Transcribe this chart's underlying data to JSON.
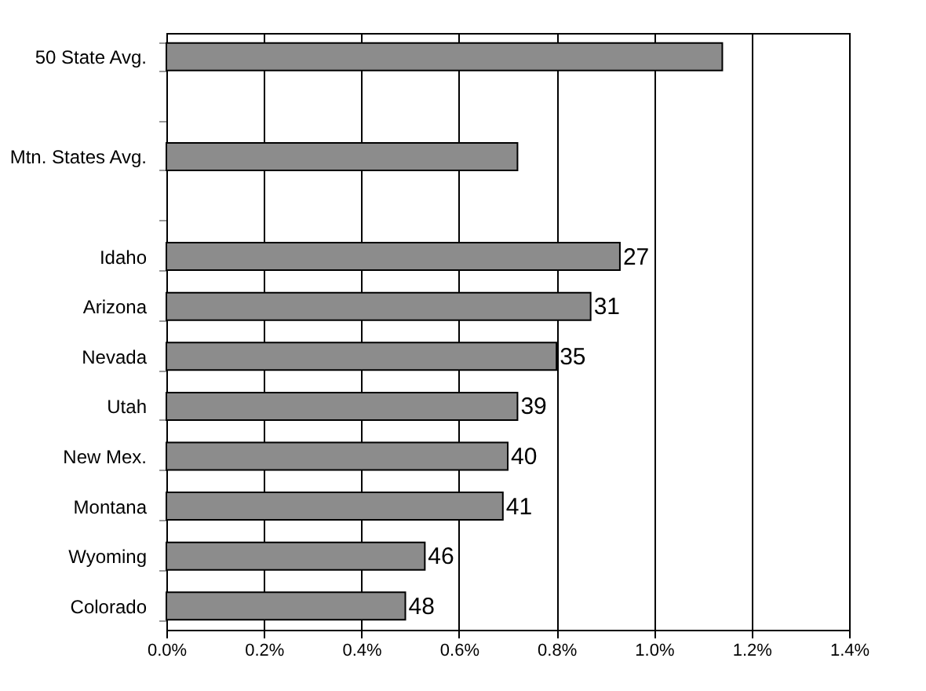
{
  "chart_data": {
    "type": "bar",
    "orientation": "horizontal",
    "categories": [
      "50 State Avg.",
      null,
      "Mtn. States Avg.",
      null,
      "Idaho",
      "Arizona",
      "Nevada",
      "Utah",
      "New Mex.",
      "Montana",
      "Wyoming",
      "Colorado"
    ],
    "values": [
      1.14,
      null,
      0.72,
      null,
      0.93,
      0.87,
      0.8,
      0.72,
      0.7,
      0.69,
      0.53,
      0.49
    ],
    "annotations": [
      {
        "text": "27",
        "x": 0.93,
        "y": "Idaho"
      },
      {
        "text": "31",
        "x": 0.87,
        "y": "Arizona"
      },
      {
        "text": "35",
        "x": 0.8,
        "y": "Nevada"
      },
      {
        "text": "39",
        "x": 0.72,
        "y": "Utah"
      },
      {
        "text": "40",
        "x": 0.7,
        "y": "New Mex."
      },
      {
        "text": "41",
        "x": 0.69,
        "y": "Montana"
      },
      {
        "text": "46",
        "x": 0.53,
        "y": "Wyoming"
      },
      {
        "text": "48",
        "x": 0.49,
        "y": "Colorado"
      }
    ],
    "color": "#8c8c8c",
    "xlim": [
      0,
      1.4
    ],
    "xticks": [
      {
        "value": 0,
        "label": "0.0%"
      },
      {
        "value": 0.2,
        "label": "0.2%"
      },
      {
        "value": 0.4,
        "label": "0.4%"
      },
      {
        "value": 0.6,
        "label": "0.6%"
      },
      {
        "value": 0.8,
        "label": "0.8%"
      },
      {
        "value": 1.0,
        "label": "1.0%"
      },
      {
        "value": 1.2,
        "label": "1.2%"
      },
      {
        "value": 1.4,
        "label": "1.4%"
      }
    ],
    "grid": "x"
  }
}
